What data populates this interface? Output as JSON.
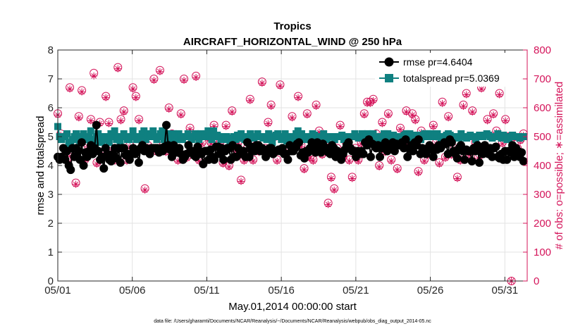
{
  "chart_data": {
    "type": "line",
    "title": "Tropics",
    "subtitle": "AIRCRAFT_HORIZONTAL_WIND @ 250 hPa",
    "xlabel": "May.01,2014 00:00:00 start",
    "ylabel_left": "rmse and totalspread",
    "ylabel_right": "# of obs: o=possible; ∗=assimilated",
    "footnote": "data file: /Users/gharamti/Documents/NCAR/Reanalysis/~/Documents/NCAR/Reanalysis/webpub/obs_diag_output_2014-05.nc",
    "xlim": [
      0,
      31.5
    ],
    "ylim_left": [
      0,
      8
    ],
    "ylim_right": [
      0,
      800
    ],
    "x_ticks": [
      0,
      5,
      10,
      15,
      20,
      25,
      30
    ],
    "x_tick_labels": [
      "05/01",
      "05/06",
      "05/11",
      "05/16",
      "05/21",
      "05/26",
      "05/31"
    ],
    "y_ticks_left": [
      "0",
      "1",
      "2",
      "3",
      "4",
      "5",
      "6",
      "7",
      "8"
    ],
    "y_ticks_right": [
      "0",
      "100",
      "200",
      "300",
      "400",
      "500",
      "600",
      "700",
      "800"
    ],
    "grid": true,
    "legend_position": "top-right",
    "colors": {
      "rmse": "#000000",
      "totalspread": "#0f8080",
      "obs": "#d4145a"
    },
    "series": [
      {
        "name": "rmse",
        "legend": "rmse pr=4.6404",
        "axis": "left",
        "values": [
          4.3,
          4.2,
          4.3,
          4.6,
          4.2,
          4.5,
          4.0,
          3.85,
          4.6,
          4.3,
          4.6,
          4.5,
          4.2,
          4.8,
          4.0,
          4.45,
          4.3,
          4.5,
          4.7,
          4.4,
          4.6,
          5.4,
          4.5,
          4.2,
          4.3,
          3.9,
          4.6,
          4.4,
          4.2,
          4.15,
          4.4,
          4.6,
          4.25,
          4.6,
          4.1,
          4.6,
          4.6,
          4.35,
          4.4,
          4.2,
          4.4,
          4.6,
          4.4,
          4.5,
          4.1,
          4.6,
          4.7,
          4.5,
          4.6,
          4.5,
          4.4,
          4.6,
          4.6,
          4.6,
          4.6,
          4.45,
          4.6,
          4.5,
          4.65,
          5.4,
          4.7,
          4.55,
          4.3,
          4.7,
          4.5,
          4.45,
          4.6,
          4.4,
          4.2,
          4.3,
          4.4,
          4.7,
          4.5,
          4.5,
          4.35,
          4.3,
          4.65,
          4.5,
          4.4,
          4.05,
          4.5,
          4.5,
          4.2,
          4.55,
          4.3,
          4.2,
          4.65,
          4.65,
          4.4,
          4.6,
          4.2,
          4.5,
          4.6,
          4.6,
          4.2,
          4.7,
          4.3,
          4.3,
          4.6,
          4.4,
          4.4,
          4.5,
          4.3,
          4.8,
          4.3,
          4.65,
          4.5,
          4.5,
          4.7,
          4.7,
          4.5,
          4.6,
          4.5,
          4.3,
          4.5,
          4.6,
          4.6,
          4.4,
          4.5,
          4.5,
          4.55,
          4.5,
          4.6,
          4.4,
          4.4,
          4.2,
          4.7,
          4.5,
          4.5,
          4.6,
          4.75,
          4.8,
          4.35,
          4.45,
          4.25,
          4.5,
          4.45,
          4.6,
          4.8,
          4.6,
          4.45,
          4.8,
          4.6,
          4.45,
          4.75,
          4.6,
          4.6,
          4.45,
          4.4,
          4.7,
          4.6,
          4.3,
          4.5,
          4.4,
          4.2,
          4.4,
          4.55,
          4.7,
          4.8,
          4.6,
          4.5,
          4.5,
          4.3,
          4.5,
          4.4,
          4.5,
          4.4,
          4.8,
          4.7,
          4.9,
          4.3,
          4.75,
          4.7,
          4.6,
          4.7,
          4.3,
          4.6,
          4.7,
          4.8,
          4.5,
          4.7,
          4.6,
          4.8,
          4.5,
          4.75,
          4.7,
          4.7,
          4.8,
          4.6,
          4.9,
          4.3,
          4.6,
          4.7,
          4.5,
          4.8,
          4.7,
          4.9,
          4.4,
          4.6,
          4.5,
          4.4,
          4.6,
          4.7,
          4.55,
          4.3,
          4.6,
          4.55,
          4.7,
          4.6,
          4.7,
          4.8,
          4.75,
          4.4,
          4.9,
          4.8,
          4.5,
          4.4,
          4.25,
          4.6,
          4.7,
          4.5,
          4.2,
          4.55,
          4.5,
          4.5,
          4.15,
          4.6,
          4.5,
          4.7,
          4.1,
          4.5,
          4.4,
          4.7,
          4.6,
          4.4,
          4.6,
          4.3,
          4.6,
          4.65,
          4.3,
          4.25,
          4.4,
          4.2,
          4.5,
          4.2,
          4.5,
          4.45,
          4.7,
          4.3,
          4.6,
          4.5,
          4.3,
          4.45,
          4.15
        ]
      },
      {
        "name": "totalspread",
        "legend": "totalspread pr=5.0369",
        "axis": "left",
        "values": [
          5.35,
          5.0,
          4.9,
          5.0,
          5.0,
          5.1,
          4.8,
          4.7,
          4.9,
          5.0,
          5.1,
          4.9,
          4.8,
          5.0,
          5.1,
          4.9,
          4.9,
          5.0,
          5.2,
          4.9,
          4.8,
          5.0,
          5.1,
          4.9,
          4.8,
          5.0,
          5.0,
          4.9,
          4.8,
          5.1,
          5.0,
          5.2,
          4.9,
          5.0,
          4.8,
          5.0,
          5.1,
          5.0,
          4.9,
          4.9,
          5.0,
          5.2,
          5.0,
          4.9,
          4.9,
          5.0,
          5.1,
          5.2,
          4.9,
          5.1,
          5.0,
          5.1,
          5.2,
          5.0,
          4.9,
          5.0,
          5.1,
          5.2,
          4.9,
          5.05,
          5.1,
          5.0,
          4.9,
          5.1,
          5.0,
          4.9,
          5.1,
          5.0,
          4.9,
          5.0,
          5.0,
          5.1,
          5.0,
          4.9,
          5.0,
          5.1,
          5.0,
          4.9,
          5.1,
          5.0,
          5.0,
          5.1,
          5.2,
          5.0,
          4.9,
          5.2,
          5.0,
          5.05,
          5.0,
          4.9,
          5.0,
          4.9,
          5.0,
          4.95,
          4.8,
          4.9,
          5.0,
          4.9,
          5.05,
          4.95,
          5.1,
          5.0,
          4.9,
          5.0,
          4.9,
          5.1,
          5.0,
          4.95,
          5.0,
          5.1,
          5.0,
          5.0,
          4.95,
          5.0,
          4.9,
          5.1,
          5.0,
          4.8,
          5.0,
          5.05,
          5.1,
          5.0,
          4.9,
          4.95,
          5.1,
          4.85,
          4.9,
          5.0,
          4.9,
          5.0,
          5.1,
          5.2,
          5.0,
          5.1,
          5.0,
          4.9,
          5.0,
          5.0,
          5.0,
          5.1,
          5.05,
          4.9,
          5.0,
          5.0,
          5.0,
          5.1,
          5.0,
          4.9,
          5.0,
          5.0,
          5.0,
          4.9,
          5.0,
          5.0,
          5.0,
          5.05,
          4.9,
          5.0,
          5.0,
          5.0,
          5.0,
          5.0,
          5.1,
          5.0,
          4.95,
          5.0,
          5.1,
          4.95,
          5.0,
          5.1,
          5.0,
          5.0,
          5.1,
          5.0,
          5.0,
          4.95,
          4.9,
          5.0,
          5.1,
          5.0,
          5.1,
          5.0,
          4.95,
          5.05,
          5.0,
          5.0,
          4.9,
          5.0,
          5.0,
          5.05,
          5.1,
          5.0,
          5.1,
          4.95,
          5.0,
          5.05,
          5.0,
          5.05,
          4.9,
          5.0,
          5.1,
          5.1,
          5.0,
          5.0,
          5.1,
          5.0,
          5.05,
          5.1,
          5.0,
          4.95,
          5.0,
          5.0,
          5.05,
          5.1,
          5.05,
          5.0,
          4.95,
          5.0,
          5.0,
          4.95,
          5.1,
          5.0,
          5.0,
          4.95,
          5.0,
          5.05,
          5.0,
          5.0,
          4.9,
          5.0,
          5.05,
          5.0,
          5.0,
          5.05,
          5.1,
          5.05,
          5.0,
          4.95,
          5.0,
          5.0,
          5.1,
          5.0,
          4.95,
          5.05,
          5.0,
          4.9,
          4.95,
          5.0,
          5.05,
          5.0,
          5.0,
          5.0,
          4.95,
          5.0,
          5.0
        ]
      },
      {
        "name": "obs_possible",
        "legend": "",
        "axis": "right",
        "marker": "circle",
        "values": [
          580,
          510,
          430,
          420,
          670,
          440,
          340,
          570,
          660,
          420,
          470,
          560,
          720,
          410,
          550,
          440,
          640,
          550,
          460,
          420,
          740,
          560,
          590,
          420,
          470,
          670,
          640,
          560,
          500,
          320,
          470,
          460,
          700,
          450,
          730,
          470,
          450,
          600,
          510,
          460,
          420,
          580,
          700,
          430,
          530,
          500,
          710,
          420,
          480,
          450,
          500,
          480,
          540,
          470,
          480,
          410,
          540,
          400,
          590,
          460,
          480,
          350,
          420,
          460,
          630,
          420,
          470,
          450,
          690,
          460,
          550,
          610,
          500,
          420,
          680,
          450,
          450,
          480,
          570,
          470,
          640,
          470,
          390,
          580,
          430,
          420,
          610,
          520,
          440,
          480,
          270,
          360,
          320,
          460,
          540,
          430,
          480,
          420,
          360,
          460,
          420,
          480,
          580,
          620,
          620,
          630,
          510,
          400,
          550,
          450,
          580,
          420,
          500,
          390,
          530,
          470,
          590,
          470,
          580,
          560,
          380,
          520,
          420,
          440,
          710,
          540,
          480,
          410,
          620,
          430,
          570,
          440,
          460,
          360,
          420,
          610,
          650,
          440,
          590,
          480,
          430,
          670,
          460,
          560,
          700,
          580,
          520,
          650,
          480,
          560,
          500,
          0,
          500,
          460,
          490,
          510
        ]
      },
      {
        "name": "obs_assimilated",
        "legend": "",
        "axis": "right",
        "marker": "asterisk",
        "values": [
          575,
          505,
          425,
          415,
          665,
          435,
          335,
          565,
          655,
          415,
          465,
          555,
          710,
          405,
          545,
          435,
          635,
          545,
          455,
          415,
          735,
          555,
          585,
          415,
          465,
          665,
          635,
          555,
          495,
          315,
          465,
          455,
          695,
          445,
          725,
          465,
          445,
          595,
          505,
          455,
          415,
          575,
          695,
          425,
          525,
          495,
          705,
          415,
          475,
          445,
          495,
          475,
          535,
          465,
          475,
          405,
          535,
          395,
          585,
          455,
          475,
          345,
          415,
          455,
          625,
          415,
          465,
          445,
          685,
          455,
          545,
          605,
          495,
          415,
          675,
          445,
          445,
          475,
          565,
          465,
          635,
          465,
          385,
          575,
          425,
          415,
          605,
          515,
          435,
          475,
          265,
          355,
          315,
          455,
          535,
          425,
          475,
          415,
          355,
          455,
          415,
          475,
          575,
          615,
          615,
          625,
          505,
          395,
          545,
          445,
          575,
          415,
          495,
          385,
          525,
          465,
          585,
          465,
          575,
          555,
          375,
          515,
          415,
          435,
          705,
          535,
          475,
          405,
          615,
          425,
          565,
          435,
          455,
          355,
          415,
          605,
          645,
          435,
          585,
          475,
          425,
          665,
          455,
          555,
          695,
          575,
          515,
          645,
          475,
          555,
          495,
          0,
          495,
          455,
          485,
          505
        ]
      }
    ]
  }
}
